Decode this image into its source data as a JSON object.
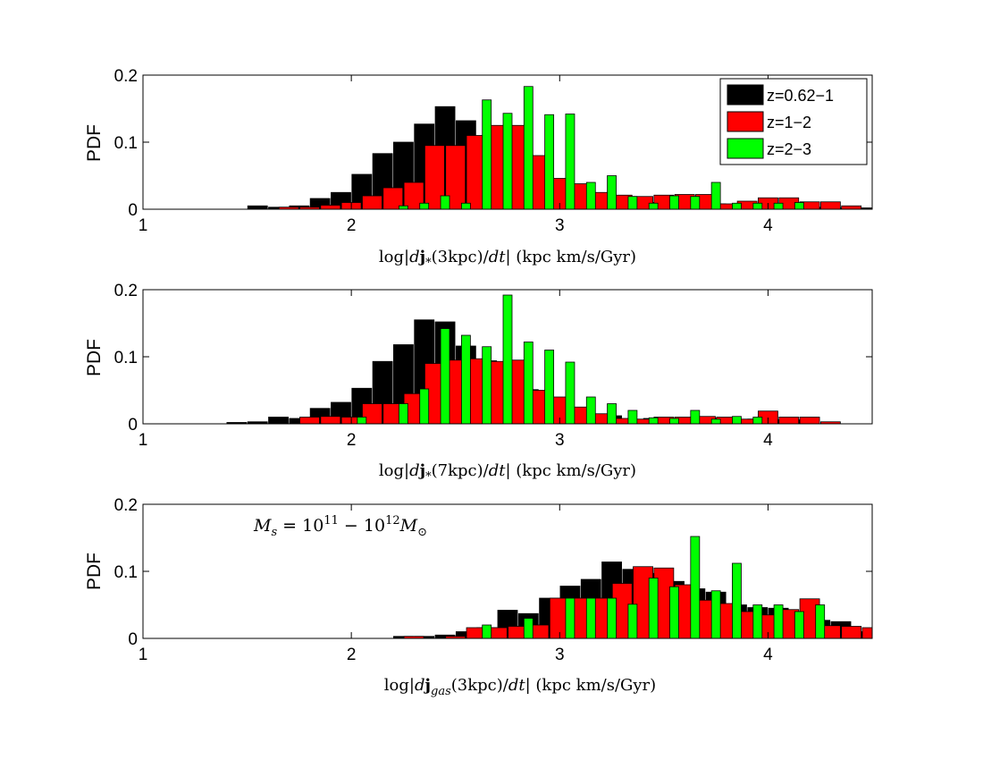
{
  "chart_data": [
    {
      "type": "bar",
      "ylabel": "PDF",
      "xlabel": "log|dj⃗*(3kpc)/dt| (kpc km/s/Gyr)",
      "xlim": [
        1,
        4.5
      ],
      "ylim": [
        0,
        0.2
      ],
      "xticks": [
        "1",
        "2",
        "3",
        "4"
      ],
      "yticks": [
        "0",
        "0.1",
        "0.2"
      ],
      "legend": {
        "position": "top-right",
        "entries": [
          "z=0.62−1",
          "z=1−2",
          "z=2−3"
        ]
      },
      "series": [
        {
          "name": "z=0.62−1",
          "color": "#000000",
          "x": [
            1.55,
            1.65,
            1.75,
            1.85,
            1.95,
            2.05,
            2.15,
            2.25,
            2.35,
            2.45,
            2.55,
            2.65,
            2.75,
            2.85,
            2.95,
            3.05,
            3.15,
            3.25,
            3.35,
            3.45,
            3.55,
            3.65,
            3.75,
            3.85,
            3.95,
            4.05,
            4.15,
            4.25,
            4.35,
            4.45
          ],
          "values": [
            0.005,
            0.003,
            0.005,
            0.016,
            0.025,
            0.052,
            0.083,
            0.1,
            0.127,
            0.153,
            0.132,
            0.098,
            0.08,
            0.065,
            0.043,
            0.03,
            0.022,
            0.014,
            0.01,
            0.01,
            0.01,
            0.008,
            0.008,
            0.005,
            0.005,
            0.004,
            0.003,
            0.003,
            0.002,
            0.002
          ]
        },
        {
          "name": "z=1−2",
          "color": "#ff0000",
          "x": [
            1.7,
            1.8,
            1.9,
            2.0,
            2.1,
            2.2,
            2.3,
            2.4,
            2.5,
            2.6,
            2.7,
            2.8,
            2.9,
            3.0,
            3.1,
            3.2,
            3.3,
            3.4,
            3.5,
            3.6,
            3.7,
            3.8,
            3.9,
            4.0,
            4.1,
            4.2,
            4.3,
            4.4
          ],
          "values": [
            0.003,
            0.003,
            0.006,
            0.01,
            0.02,
            0.032,
            0.04,
            0.095,
            0.095,
            0.11,
            0.125,
            0.125,
            0.08,
            0.046,
            0.038,
            0.025,
            0.021,
            0.019,
            0.021,
            0.022,
            0.022,
            0.008,
            0.012,
            0.017,
            0.017,
            0.011,
            0.011,
            0.005
          ]
        },
        {
          "name": "z=2−3",
          "color": "#00ff00",
          "x": [
            2.25,
            2.35,
            2.45,
            2.55,
            2.65,
            2.75,
            2.85,
            2.95,
            3.05,
            3.15,
            3.25,
            3.35,
            3.45,
            3.55,
            3.65,
            3.75,
            3.85,
            3.95,
            4.05,
            4.15
          ],
          "values": [
            0.005,
            0.009,
            0.02,
            0.009,
            0.163,
            0.143,
            0.183,
            0.141,
            0.142,
            0.04,
            0.05,
            0.019,
            0.009,
            0.02,
            0.019,
            0.04,
            0.009,
            0.009,
            0.009,
            0.01
          ]
        }
      ]
    },
    {
      "type": "bar",
      "ylabel": "PDF",
      "xlabel": "log|dj⃗*(7kpc)/dt| (kpc km/s/Gyr)",
      "xlim": [
        1,
        4.5
      ],
      "ylim": [
        0,
        0.2
      ],
      "xticks": [
        "1",
        "2",
        "3",
        "4"
      ],
      "yticks": [
        "0",
        "0.1",
        "0.2"
      ],
      "series": [
        {
          "name": "z=0.62−1",
          "color": "#000000",
          "x": [
            1.45,
            1.55,
            1.65,
            1.75,
            1.85,
            1.95,
            2.05,
            2.15,
            2.25,
            2.35,
            2.45,
            2.55,
            2.65,
            2.75,
            2.85,
            2.95,
            3.05,
            3.15,
            3.25,
            3.35,
            3.45,
            3.55,
            3.65,
            3.75,
            3.85,
            3.95,
            4.05,
            4.15
          ],
          "values": [
            0.002,
            0.003,
            0.01,
            0.008,
            0.023,
            0.032,
            0.053,
            0.093,
            0.118,
            0.155,
            0.152,
            0.116,
            0.094,
            0.058,
            0.051,
            0.03,
            0.018,
            0.013,
            0.012,
            0.006,
            0.008,
            0.006,
            0.007,
            0.008,
            0.006,
            0.007,
            0.006,
            0.006
          ]
        },
        {
          "name": "z=1−2",
          "color": "#ff0000",
          "x": [
            1.8,
            1.9,
            2.0,
            2.1,
            2.2,
            2.3,
            2.4,
            2.5,
            2.6,
            2.7,
            2.8,
            2.9,
            3.0,
            3.1,
            3.2,
            3.3,
            3.4,
            3.5,
            3.6,
            3.7,
            3.8,
            3.9,
            4.0,
            4.1,
            4.2,
            4.3
          ],
          "values": [
            0.01,
            0.011,
            0.01,
            0.03,
            0.03,
            0.045,
            0.09,
            0.095,
            0.097,
            0.093,
            0.095,
            0.05,
            0.04,
            0.025,
            0.015,
            0.008,
            0.007,
            0.01,
            0.01,
            0.011,
            0.01,
            0.007,
            0.019,
            0.01,
            0.01,
            0.003
          ]
        },
        {
          "name": "z=2−3",
          "color": "#00ff00",
          "x": [
            2.05,
            2.25,
            2.35,
            2.45,
            2.55,
            2.65,
            2.75,
            2.85,
            2.95,
            3.05,
            3.15,
            3.25,
            3.35,
            3.45,
            3.55,
            3.65,
            3.75,
            3.85,
            3.95
          ],
          "values": [
            0.01,
            0.03,
            0.052,
            0.142,
            0.132,
            0.115,
            0.192,
            0.122,
            0.11,
            0.092,
            0.04,
            0.03,
            0.02,
            0.009,
            0.008,
            0.02,
            0.007,
            0.011,
            0.01
          ]
        }
      ]
    },
    {
      "type": "bar",
      "ylabel": "PDF",
      "xlabel": "log|dj⃗gas(3kpc)/dt| (kpc km/s/Gyr)",
      "xlim": [
        1,
        4.5
      ],
      "ylim": [
        0,
        0.2
      ],
      "xticks": [
        "1",
        "2",
        "3",
        "4"
      ],
      "yticks": [
        "0",
        "0.1",
        "0.2"
      ],
      "annotation": "M_s = 10^11 − 10^12 M_⊙",
      "series": [
        {
          "name": "z=0.62−1",
          "color": "#000000",
          "x": [
            2.25,
            2.35,
            2.45,
            2.55,
            2.65,
            2.75,
            2.85,
            2.95,
            3.05,
            3.15,
            3.25,
            3.35,
            3.45,
            3.55,
            3.65,
            3.75,
            3.85,
            3.95,
            4.05,
            4.15,
            4.25,
            4.35,
            4.45
          ],
          "values": [
            0.003,
            0.003,
            0.005,
            0.01,
            0.016,
            0.042,
            0.037,
            0.06,
            0.078,
            0.088,
            0.114,
            0.103,
            0.097,
            0.085,
            0.074,
            0.069,
            0.05,
            0.046,
            0.045,
            0.04,
            0.027,
            0.025,
            0.01
          ]
        },
        {
          "name": "z=1−2",
          "color": "#ff0000",
          "x": [
            2.3,
            2.5,
            2.6,
            2.7,
            2.8,
            2.9,
            3.0,
            3.1,
            3.2,
            3.3,
            3.4,
            3.5,
            3.6,
            3.7,
            3.8,
            3.9,
            4.0,
            4.1,
            4.2,
            4.3,
            4.4,
            4.5
          ],
          "values": [
            0.003,
            0.003,
            0.016,
            0.016,
            0.018,
            0.02,
            0.06,
            0.06,
            0.06,
            0.082,
            0.107,
            0.105,
            0.08,
            0.057,
            0.052,
            0.04,
            0.035,
            0.043,
            0.059,
            0.019,
            0.018,
            0.016
          ]
        },
        {
          "name": "z=2−3",
          "color": "#00ff00",
          "x": [
            2.65,
            2.85,
            3.05,
            3.15,
            3.25,
            3.35,
            3.45,
            3.55,
            3.65,
            3.75,
            3.85,
            3.95,
            4.05,
            4.15,
            4.25
          ],
          "values": [
            0.02,
            0.03,
            0.06,
            0.06,
            0.06,
            0.051,
            0.09,
            0.077,
            0.152,
            0.071,
            0.112,
            0.05,
            0.05,
            0.04,
            0.05
          ]
        }
      ]
    }
  ]
}
